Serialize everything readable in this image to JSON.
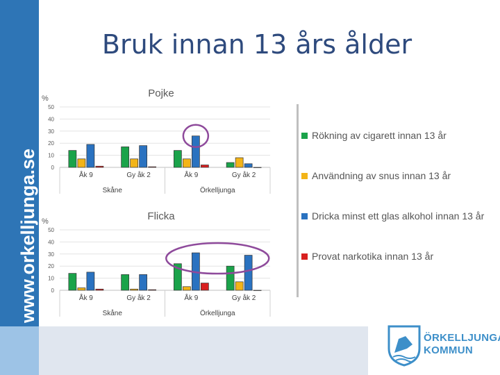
{
  "slide": {
    "title": "Bruk innan 13 års ålder",
    "sidebar_url": "www.orkelljunga.se",
    "logo_line1": "ÖRKELLJUNGA",
    "logo_line2": "KOMMUN"
  },
  "colors": {
    "series": [
      "#1aa34a",
      "#f3b418",
      "#2a72c0",
      "#d8201f"
    ],
    "highlight": "#8e4a9b",
    "sidebar": "#2e75b6"
  },
  "legend": {
    "items": [
      "Rökning av cigarett innan 13 år",
      "Användning av snus innan 13 år",
      "Dricka minst ett glas alkohol innan 13 år",
      "Provat narkotika innan 13 år"
    ]
  },
  "chart_data": [
    {
      "type": "bar",
      "title": "Pojke",
      "ylabel": "%",
      "ylim": [
        0,
        50
      ],
      "yticks": [
        0,
        10,
        20,
        30,
        40,
        50
      ],
      "categories": [
        "Åk 9",
        "Gy åk 2",
        "Åk 9",
        "Gy åk 2"
      ],
      "groups": [
        "Skåne",
        "Örkelljunga"
      ],
      "series": [
        {
          "name": "Rökning av cigarett innan 13 år",
          "values": [
            14,
            17,
            14,
            4
          ]
        },
        {
          "name": "Användning av snus innan 13 år",
          "values": [
            7,
            7,
            7,
            8
          ]
        },
        {
          "name": "Dricka minst ett glas alkohol innan 13 år",
          "values": [
            19,
            18,
            26,
            3
          ]
        },
        {
          "name": "Provat narkotika innan 13 år",
          "values": [
            1,
            0.5,
            2,
            0
          ]
        }
      ],
      "highlight": "Örkelljunga Åk 9 alkohol"
    },
    {
      "type": "bar",
      "title": "Flicka",
      "ylabel": "%",
      "ylim": [
        0,
        50
      ],
      "yticks": [
        0,
        10,
        20,
        30,
        40,
        50
      ],
      "categories": [
        "Åk 9",
        "Gy åk 2",
        "Åk 9",
        "Gy åk 2"
      ],
      "groups": [
        "Skåne",
        "Örkelljunga"
      ],
      "series": [
        {
          "name": "Rökning av cigarett innan 13 år",
          "values": [
            14,
            13,
            22,
            20
          ]
        },
        {
          "name": "Användning av snus innan 13 år",
          "values": [
            2,
            1,
            3,
            7
          ]
        },
        {
          "name": "Dricka minst ett glas alkohol innan 13 år",
          "values": [
            15,
            13,
            31,
            29
          ]
        },
        {
          "name": "Provat narkotika innan 13 år",
          "values": [
            1,
            0.5,
            6,
            0
          ]
        }
      ],
      "highlight": "Örkelljunga alkohol"
    }
  ]
}
